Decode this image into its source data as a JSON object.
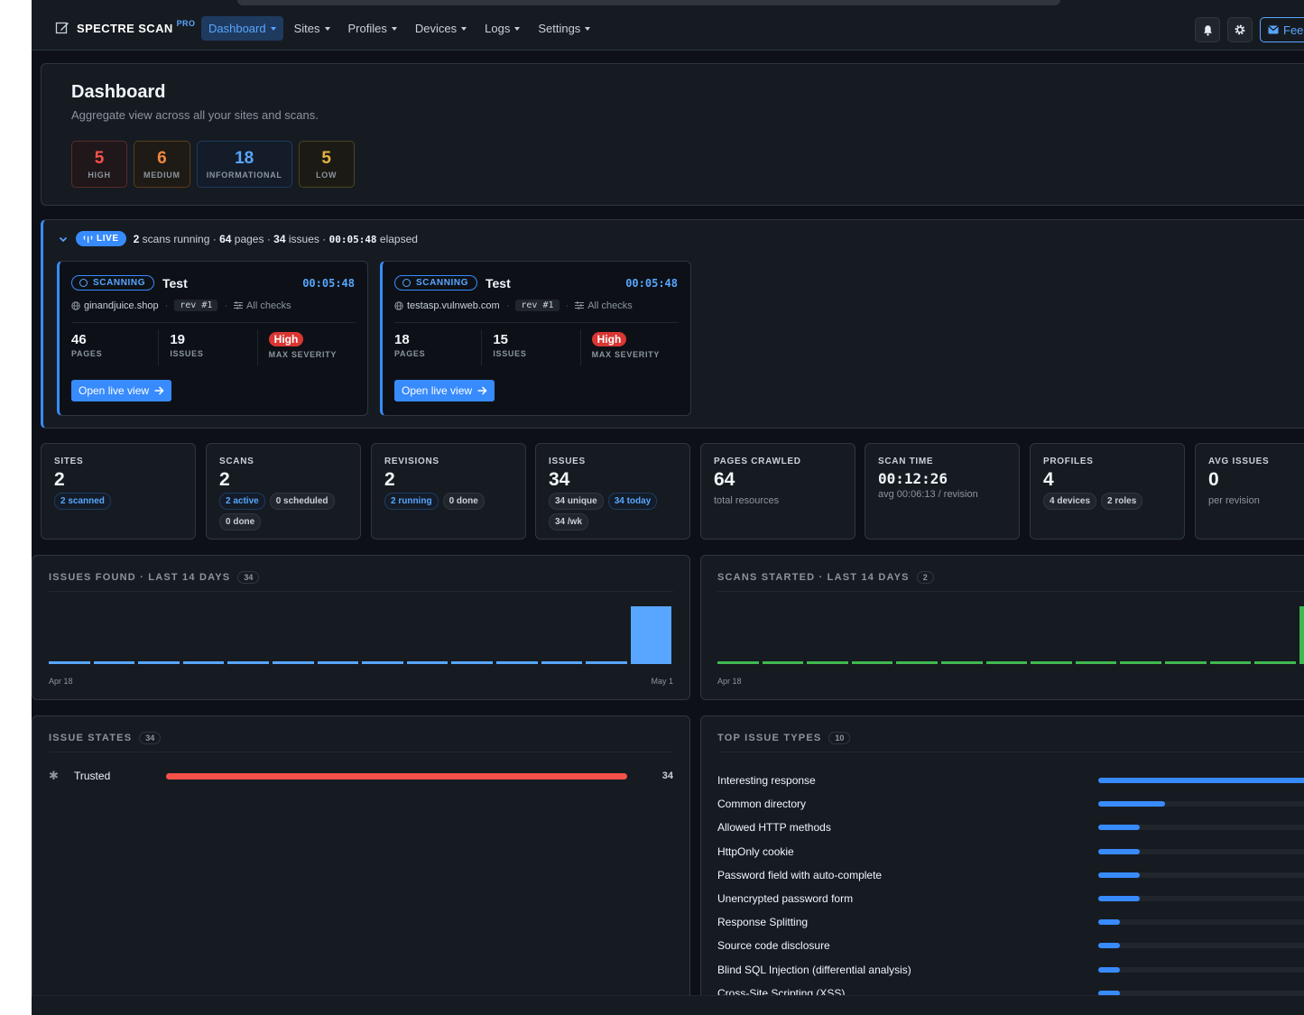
{
  "brand": {
    "name": "SPECTRE SCAN",
    "tier": "PRO"
  },
  "nav": [
    {
      "label": "Dashboard",
      "active": true
    },
    {
      "label": "Sites",
      "active": false
    },
    {
      "label": "Profiles",
      "active": false
    },
    {
      "label": "Devices",
      "active": false
    },
    {
      "label": "Logs",
      "active": false
    },
    {
      "label": "Settings",
      "active": false
    }
  ],
  "toolbar": {
    "feedback_label": "Feedback",
    "icons": [
      "bell-icon",
      "gear-icon",
      "mail-icon"
    ]
  },
  "dashboard": {
    "title": "Dashboard",
    "subtitle": "Aggregate view across all your sites and scans.",
    "severity": [
      {
        "value": "5",
        "label": "HIGH",
        "color": "#f85149"
      },
      {
        "value": "6",
        "label": "MEDIUM",
        "color": "#f0883e"
      },
      {
        "value": "18",
        "label": "INFORMATIONAL",
        "color": "#58a6ff"
      },
      {
        "value": "5",
        "label": "LOW",
        "color": "#e3b341"
      }
    ]
  },
  "live": {
    "badge": "LIVE",
    "scans_running": "2",
    "scans_running_label": "scans running",
    "pages": "64",
    "pages_label": "pages",
    "issues": "34",
    "issues_label": "issues",
    "elapsed": "00:05:48",
    "elapsed_label": "elapsed",
    "sep": "·",
    "scans": [
      {
        "status": "SCANNING",
        "name": "Test",
        "time": "00:05:48",
        "site": "ginandjuice.shop",
        "rev": "rev #1",
        "checks": "All checks",
        "pages": "46",
        "pages_label": "PAGES",
        "issues": "19",
        "issues_label": "ISSUES",
        "severity": "High",
        "severity_label": "MAX SEVERITY",
        "button": "Open live view"
      },
      {
        "status": "SCANNING",
        "name": "Test",
        "time": "00:05:48",
        "site": "testasp.vulnweb.com",
        "rev": "rev #1",
        "checks": "All checks",
        "pages": "18",
        "pages_label": "PAGES",
        "issues": "15",
        "issues_label": "ISSUES",
        "severity": "High",
        "severity_label": "MAX SEVERITY",
        "button": "Open live view"
      }
    ]
  },
  "stats": [
    {
      "title": "SITES",
      "value": "2",
      "chips": [
        {
          "text": "2 scanned",
          "tone": "blue"
        }
      ]
    },
    {
      "title": "SCANS",
      "value": "2",
      "chips": [
        {
          "text": "2 active",
          "tone": "blue"
        },
        {
          "text": "0 scheduled",
          "tone": "gray"
        },
        {
          "text": "0 done",
          "tone": "gray"
        }
      ]
    },
    {
      "title": "REVISIONS",
      "value": "2",
      "chips": [
        {
          "text": "2 running",
          "tone": "blue"
        },
        {
          "text": "0 done",
          "tone": "gray"
        }
      ]
    },
    {
      "title": "ISSUES",
      "value": "34",
      "chips": [
        {
          "text": "34 unique",
          "tone": "gray"
        },
        {
          "text": "34 today",
          "tone": "blue"
        },
        {
          "text": "34 /wk",
          "tone": "gray"
        }
      ]
    },
    {
      "title": "PAGES CRAWLED",
      "value": "64",
      "sub": "total resources"
    },
    {
      "title": "SCAN TIME",
      "value": "00:12:26",
      "sub": "avg 00:06:13 / revision",
      "mono": true
    },
    {
      "title": "PROFILES",
      "value": "4",
      "chips": [
        {
          "text": "4 devices",
          "tone": "gray"
        },
        {
          "text": "2 roles",
          "tone": "gray"
        }
      ]
    },
    {
      "title": "AVG ISSUES",
      "value": "0",
      "sub": "per revision"
    }
  ],
  "chart_data": [
    {
      "type": "bar",
      "title": "ISSUES FOUND · LAST 14 DAYS",
      "total": "34",
      "x_start_label": "Apr 18",
      "x_end_label": "May 1",
      "values": [
        0,
        0,
        0,
        0,
        0,
        0,
        0,
        0,
        0,
        0,
        0,
        0,
        0,
        34
      ],
      "ylim": [
        0,
        34
      ],
      "color": "#58a6ff"
    },
    {
      "type": "bar",
      "title": "SCANS STARTED · LAST 14 DAYS",
      "total": "2",
      "x_start_label": "Apr 18",
      "values": [
        0,
        0,
        0,
        0,
        0,
        0,
        0,
        0,
        0,
        0,
        0,
        0,
        0,
        2
      ],
      "ylim": [
        0,
        2
      ],
      "color": "#3fb950"
    }
  ],
  "issue_states": {
    "title": "ISSUE STATES",
    "total": "34",
    "rows": [
      {
        "name": "Trusted",
        "count": "34",
        "value": 34,
        "max": 34,
        "color": "#f85149"
      }
    ]
  },
  "top_issue_types": {
    "title": "TOP ISSUE TYPES",
    "total": "10",
    "max": 14,
    "rows": [
      {
        "name": "Interesting response",
        "value": 14
      },
      {
        "name": "Common directory",
        "value": 4
      },
      {
        "name": "Allowed HTTP methods",
        "value": 2.5
      },
      {
        "name": "HttpOnly cookie",
        "value": 2.5
      },
      {
        "name": "Password field with auto-complete",
        "value": 2.5
      },
      {
        "name": "Unencrypted password form",
        "value": 2.5
      },
      {
        "name": "Response Splitting",
        "value": 1.3
      },
      {
        "name": "Source code disclosure",
        "value": 1.3
      },
      {
        "name": "Blind SQL Injection (differential analysis)",
        "value": 1.3
      },
      {
        "name": "Cross-Site Scripting (XSS)",
        "value": 1.3
      }
    ]
  }
}
